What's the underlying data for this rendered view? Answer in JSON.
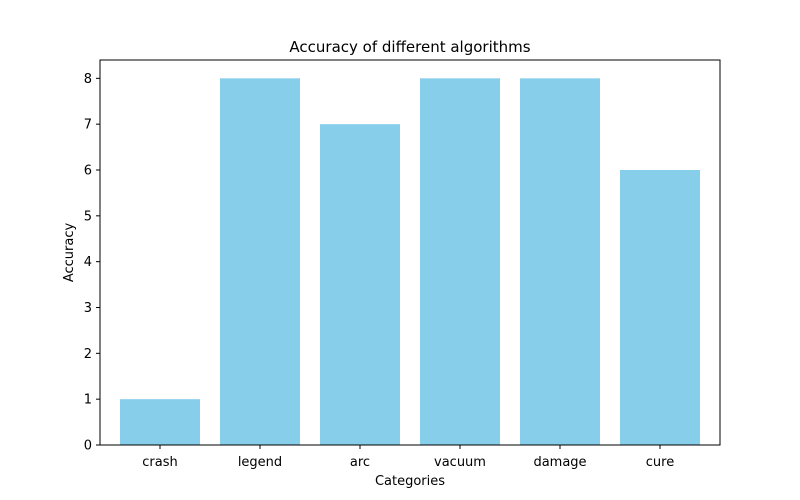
{
  "chart_data": {
    "type": "bar",
    "title": "Accuracy of different algorithms",
    "xlabel": "Categories",
    "ylabel": "Accuracy",
    "categories": [
      "crash",
      "legend",
      "arc",
      "vacuum",
      "damage",
      "cure"
    ],
    "values": [
      1,
      8,
      7,
      8,
      8,
      6
    ],
    "ylim": [
      0,
      8.4
    ],
    "yticks": [
      0,
      1,
      2,
      3,
      4,
      5,
      6,
      7,
      8
    ],
    "bar_color": "#87CEEB",
    "grid": false,
    "legend": "none"
  }
}
